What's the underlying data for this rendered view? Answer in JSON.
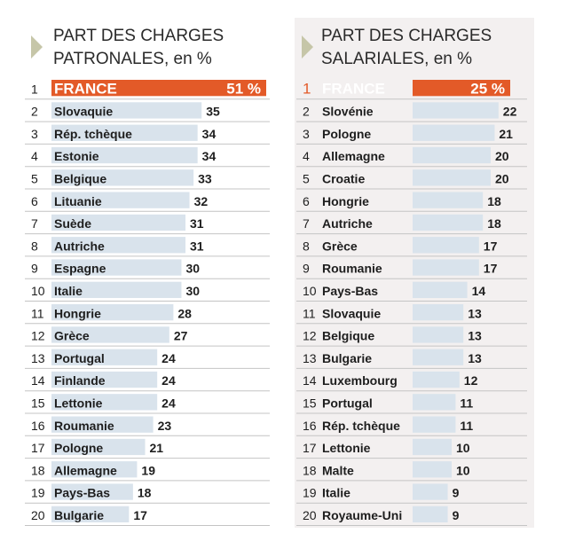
{
  "colors": {
    "highlight": "#e35a28",
    "bar": "#d9e3ec",
    "rule": "#c4c4c4",
    "text": "#1e1e1e"
  },
  "chart_data": [
    {
      "type": "bar",
      "orientation": "horizontal",
      "title_line1": "PART DES CHARGES",
      "title_line2": "PATRONALES, en %",
      "highlight_category": "FRANCE",
      "xlim": [
        0,
        51
      ],
      "ranks": [
        "1",
        "2",
        "3",
        "4",
        "5",
        "6",
        "7",
        "8",
        "9",
        "10",
        "11",
        "12",
        "13",
        "14",
        "15",
        "16",
        "17",
        "18",
        "19",
        "20"
      ],
      "categories": [
        "FRANCE",
        "Slovaquie",
        "Rép. tchèque",
        "Estonie",
        "Belgique",
        "Lituanie",
        "Suède",
        "Autriche",
        "Espagne",
        "Italie",
        "Hongrie",
        "Grèce",
        "Portugal",
        "Finlande",
        "Lettonie",
        "Roumanie",
        "Pologne",
        "Allemagne",
        "Pays-Bas",
        "Bulgarie"
      ],
      "values": [
        51,
        35,
        34,
        34,
        33,
        32,
        31,
        31,
        30,
        30,
        28,
        27,
        24,
        24,
        24,
        23,
        21,
        19,
        18,
        17
      ],
      "value_labels": [
        "51 %",
        "35",
        "34",
        "34",
        "33",
        "32",
        "31",
        "31",
        "30",
        "30",
        "28",
        "27",
        "24",
        "24",
        "24",
        "23",
        "21",
        "19",
        "18",
        "17"
      ]
    },
    {
      "type": "bar",
      "orientation": "horizontal",
      "title_line1": "PART DES CHARGES",
      "title_line2": "SALARIALES, en %",
      "highlight_category": "FRANCE",
      "xlim": [
        0,
        25
      ],
      "ranks": [
        "1",
        "2",
        "3",
        "4",
        "5",
        "6",
        "7",
        "8",
        "9",
        "10",
        "11",
        "12",
        "13",
        "14",
        "15",
        "16",
        "17",
        "18",
        "19",
        "20"
      ],
      "categories": [
        "FRANCE",
        "Slovénie",
        "Pologne",
        "Allemagne",
        "Croatie",
        "Hongrie",
        "Autriche",
        "Grèce",
        "Roumanie",
        "Pays-Bas",
        "Slovaquie",
        "Belgique",
        "Bulgarie",
        "Luxembourg",
        "Portugal",
        "Rép. tchèque",
        "Lettonie",
        "Malte",
        "Italie",
        "Royaume-Uni"
      ],
      "values": [
        25,
        22,
        21,
        20,
        20,
        18,
        18,
        17,
        17,
        14,
        13,
        13,
        13,
        12,
        11,
        11,
        10,
        10,
        9,
        9
      ],
      "value_labels": [
        "25 %",
        "22",
        "21",
        "20",
        "20",
        "18",
        "18",
        "17",
        "17",
        "14",
        "13",
        "13",
        "13",
        "12",
        "11",
        "11",
        "10",
        "10",
        "9",
        "9"
      ]
    }
  ]
}
